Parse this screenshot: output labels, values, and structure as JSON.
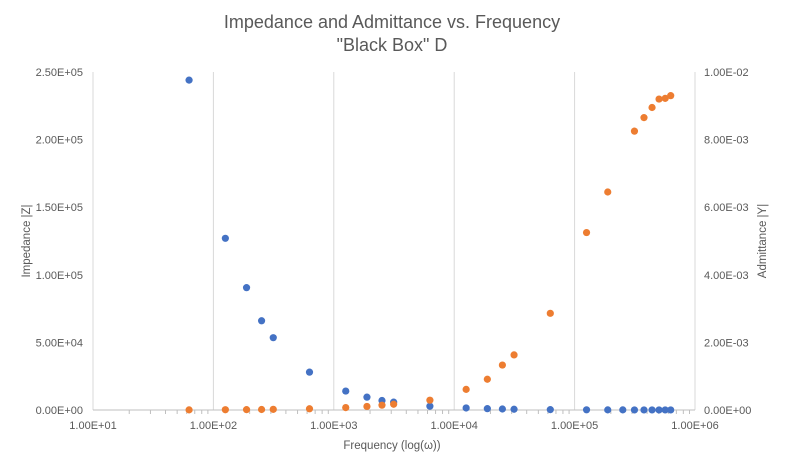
{
  "chart_data": {
    "type": "scatter",
    "title": "Impedance and Admittance vs. Frequency",
    "subtitle": "\"Black Box\" D",
    "xlabel": "Frequency (log(ω))",
    "ylabel": "Impedance |Z|",
    "y2label": "Admittance |Y|",
    "x_scale": "log",
    "xlim": [
      10,
      1000000
    ],
    "ylim": [
      0,
      250000
    ],
    "y2lim": [
      0,
      0.01
    ],
    "x_ticks": [
      10,
      100,
      1000,
      10000,
      100000,
      1000000
    ],
    "x_tick_labels": [
      "1.00E+01",
      "1.00E+02",
      "1.00E+03",
      "1.00E+04",
      "1.00E+05",
      "1.00E+06"
    ],
    "y_ticks": [
      0,
      50000,
      100000,
      150000,
      200000,
      250000
    ],
    "y_tick_labels": [
      "0.00E+00",
      "5.00E+04",
      "1.00E+05",
      "1.50E+05",
      "2.00E+05",
      "2.50E+05"
    ],
    "y2_ticks": [
      0,
      0.002,
      0.004,
      0.006,
      0.008,
      0.01
    ],
    "y2_tick_labels": [
      "0.00E+00",
      "2.00E-03",
      "4.00E-03",
      "6.00E-03",
      "8.00E-03",
      "1.00E-02"
    ],
    "grid": "vertical",
    "legend": "none",
    "series": [
      {
        "axis": "left",
        "color": "#4472C4",
        "x": [
          62.8,
          125.7,
          188.5,
          251.3,
          314.2,
          628.3,
          1256.6,
          1885.0,
          2513.3,
          3141.6,
          6283.2,
          12566.4,
          18849.6,
          25132.7,
          31415.9,
          62831.9,
          125663.7,
          188495.6,
          251327.4,
          314159.3,
          376991.1,
          439822.97,
          502654.8,
          565486.7,
          628318.5
        ],
        "values": [
          244000,
          127000,
          90500,
          66000,
          53500,
          28000,
          14000,
          9500,
          7000,
          5800,
          2800,
          1500,
          1000,
          750,
          550,
          280,
          150,
          100,
          80,
          60,
          55,
          50,
          45,
          42,
          40
        ]
      },
      {
        "axis": "right",
        "color": "#ED7D31",
        "x": [
          62.8,
          125.7,
          188.5,
          251.3,
          314.2,
          628.3,
          1256.6,
          1885.0,
          2513.3,
          3141.6,
          6283.2,
          12566.4,
          18849.6,
          25132.7,
          31415.9,
          62831.9,
          125663.7,
          188495.6,
          314159.3,
          376991.1,
          439822.97,
          502654.8,
          565486.7,
          628318.5
        ],
        "values": [
          4.1e-06,
          7.9e-06,
          1.1e-05,
          1.5e-05,
          1.9e-05,
          3.6e-05,
          7.1e-05,
          0.000105,
          0.000143,
          0.00017,
          0.00029,
          0.00061,
          0.00091,
          0.00133,
          0.00163,
          0.00286,
          0.00525,
          0.00645,
          0.00825,
          0.00865,
          0.00895,
          0.0092,
          0.00922,
          0.0093
        ]
      }
    ]
  }
}
